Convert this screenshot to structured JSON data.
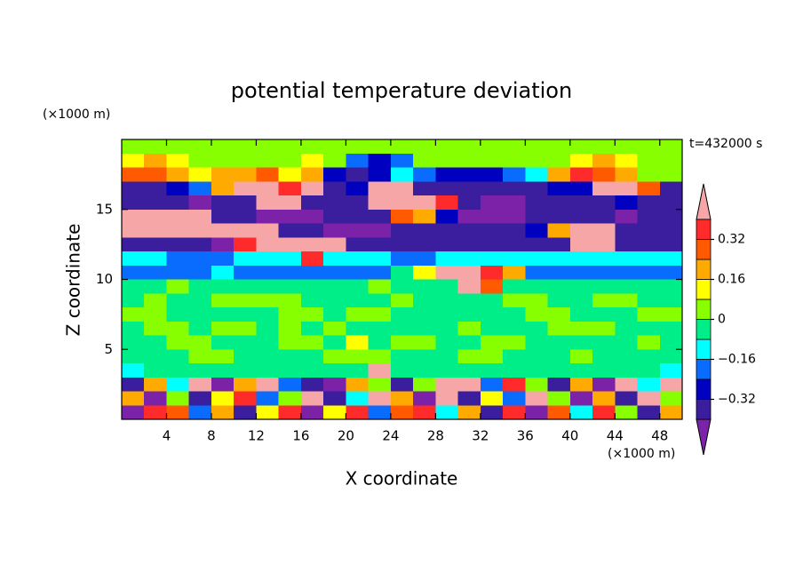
{
  "chart_data": {
    "type": "contourf",
    "title": "potential temperature deviation",
    "xlabel": "X coordinate",
    "ylabel": "Z coordinate",
    "xunit": "(×1000 m)",
    "yunit": "(×1000 m)",
    "annotation": "t=432000 s",
    "xlim": [
      0,
      50
    ],
    "ylim": [
      0,
      20
    ],
    "xticks": [
      4,
      8,
      12,
      16,
      20,
      24,
      28,
      32,
      36,
      40,
      44,
      48
    ],
    "yticks": [
      5,
      10,
      15
    ],
    "levels": [
      -0.4,
      -0.32,
      -0.24,
      -0.16,
      -0.08,
      0,
      0.08,
      0.16,
      0.24,
      0.32,
      0.4
    ],
    "colors": [
      "#7b22a8",
      "#3a1e9e",
      "#0000c0",
      "#0a6cff",
      "#00ffff",
      "#00ee88",
      "#88ff00",
      "#ffff00",
      "#ffaa00",
      "#ff5a00",
      "#ff2a2a",
      "#f6a6a6"
    ],
    "colorbar_ticks": [
      {
        "value": -0.32,
        "label": "−0.32"
      },
      {
        "value": -0.16,
        "label": "−0.16"
      },
      0,
      0.16,
      0.32
    ],
    "x": [
      1,
      3,
      5,
      7,
      9,
      11,
      13,
      15,
      17,
      19,
      21,
      23,
      25,
      27,
      29,
      31,
      33,
      35,
      37,
      39,
      41,
      43,
      45,
      47,
      49
    ],
    "y": [
      19.5,
      18.5,
      17.5,
      16.5,
      15.5,
      14.5,
      13.5,
      12.5,
      11.5,
      10.5,
      9.5,
      8.5,
      7.5,
      6.5,
      5.5,
      4.5,
      3.5,
      2.5,
      1.5,
      0.5
    ],
    "z": [
      [
        0.04,
        0.04,
        0.04,
        0.04,
        0.04,
        0.04,
        0.04,
        0.04,
        0.04,
        0.04,
        0.04,
        0.04,
        0.04,
        0.04,
        0.04,
        0.04,
        0.04,
        0.04,
        0.04,
        0.04,
        0.04,
        0.04,
        0.04,
        0.04,
        0.04
      ],
      [
        0.12,
        0.2,
        0.12,
        0.04,
        0.04,
        0.04,
        0.04,
        0.04,
        0.12,
        0.04,
        -0.2,
        -0.28,
        -0.2,
        0.04,
        0.04,
        0.04,
        0.04,
        0.04,
        0.04,
        0.04,
        0.12,
        0.2,
        0.12,
        0.04,
        0.04
      ],
      [
        0.28,
        0.28,
        0.2,
        0.12,
        0.2,
        0.2,
        0.28,
        0.12,
        0.2,
        -0.28,
        -0.36,
        -0.28,
        -0.12,
        -0.2,
        -0.28,
        -0.28,
        -0.28,
        -0.2,
        -0.12,
        0.2,
        0.36,
        0.28,
        0.2,
        0.04,
        0.04
      ],
      [
        -0.36,
        -0.36,
        -0.28,
        -0.2,
        0.2,
        0.44,
        0.44,
        0.36,
        0.44,
        -0.36,
        -0.28,
        0.44,
        0.44,
        -0.36,
        -0.36,
        -0.36,
        -0.36,
        -0.36,
        -0.36,
        -0.28,
        -0.28,
        0.44,
        0.44,
        0.28,
        -0.36
      ],
      [
        -0.36,
        -0.36,
        -0.36,
        -0.44,
        -0.36,
        -0.36,
        0.44,
        0.44,
        -0.36,
        -0.36,
        -0.36,
        0.44,
        0.44,
        0.44,
        0.36,
        -0.36,
        -0.44,
        -0.44,
        -0.36,
        -0.36,
        -0.36,
        -0.36,
        -0.28,
        -0.36,
        -0.36
      ],
      [
        0.44,
        0.44,
        0.44,
        0.44,
        -0.36,
        -0.36,
        -0.44,
        -0.44,
        -0.44,
        -0.36,
        -0.36,
        -0.36,
        0.28,
        0.2,
        -0.28,
        -0.44,
        -0.44,
        -0.44,
        -0.36,
        -0.36,
        -0.36,
        -0.36,
        -0.44,
        -0.36,
        -0.36
      ],
      [
        0.44,
        0.44,
        0.44,
        0.44,
        0.44,
        0.44,
        0.44,
        -0.36,
        -0.36,
        -0.44,
        -0.44,
        -0.44,
        -0.36,
        -0.36,
        -0.36,
        -0.36,
        -0.36,
        -0.36,
        -0.28,
        0.2,
        0.44,
        0.44,
        -0.36,
        -0.36,
        -0.36
      ],
      [
        -0.36,
        -0.36,
        -0.36,
        -0.36,
        -0.44,
        0.36,
        0.44,
        0.44,
        0.44,
        0.44,
        -0.36,
        -0.36,
        -0.36,
        -0.36,
        -0.36,
        -0.36,
        -0.36,
        -0.36,
        -0.36,
        -0.36,
        0.44,
        0.44,
        -0.36,
        -0.36,
        -0.36
      ],
      [
        -0.12,
        -0.12,
        -0.2,
        -0.2,
        -0.2,
        -0.12,
        -0.12,
        -0.12,
        0.36,
        -0.12,
        -0.12,
        -0.12,
        -0.2,
        -0.2,
        -0.12,
        -0.12,
        -0.12,
        -0.12,
        -0.12,
        -0.12,
        -0.12,
        -0.12,
        -0.12,
        -0.12,
        -0.12
      ],
      [
        -0.2,
        -0.2,
        -0.2,
        -0.2,
        -0.12,
        -0.2,
        -0.2,
        -0.2,
        -0.2,
        -0.2,
        -0.2,
        -0.2,
        -0.04,
        0.12,
        0.44,
        0.44,
        0.36,
        0.2,
        -0.2,
        -0.2,
        -0.2,
        -0.2,
        -0.2,
        -0.2,
        -0.2
      ],
      [
        -0.04,
        -0.04,
        0.04,
        -0.04,
        -0.04,
        -0.04,
        -0.04,
        -0.04,
        -0.04,
        -0.04,
        -0.04,
        0.04,
        -0.04,
        -0.04,
        -0.04,
        0.44,
        0.28,
        -0.04,
        -0.04,
        -0.04,
        -0.04,
        -0.04,
        -0.04,
        -0.04,
        -0.04
      ],
      [
        -0.04,
        0.04,
        -0.04,
        -0.04,
        0.04,
        0.04,
        0.04,
        0.04,
        -0.04,
        -0.04,
        -0.04,
        -0.04,
        0.04,
        -0.04,
        -0.04,
        -0.04,
        -0.04,
        0.04,
        0.04,
        -0.04,
        -0.04,
        0.04,
        0.04,
        -0.04,
        -0.04
      ],
      [
        0.04,
        0.04,
        -0.04,
        -0.04,
        -0.04,
        -0.04,
        -0.04,
        0.04,
        0.04,
        -0.04,
        0.04,
        0.04,
        -0.04,
        -0.04,
        -0.04,
        -0.04,
        -0.04,
        -0.04,
        0.04,
        0.04,
        -0.04,
        -0.04,
        -0.04,
        0.04,
        0.04
      ],
      [
        -0.04,
        0.04,
        0.04,
        -0.04,
        0.04,
        0.04,
        -0.04,
        0.04,
        -0.04,
        0.04,
        -0.04,
        -0.04,
        -0.04,
        -0.04,
        -0.04,
        0.04,
        -0.04,
        -0.04,
        -0.04,
        0.04,
        0.04,
        0.04,
        -0.04,
        -0.04,
        -0.04
      ],
      [
        -0.04,
        -0.04,
        0.04,
        0.04,
        -0.04,
        -0.04,
        -0.04,
        0.04,
        0.04,
        -0.04,
        0.12,
        -0.04,
        0.04,
        0.04,
        -0.04,
        -0.04,
        0.04,
        0.04,
        -0.04,
        -0.04,
        -0.04,
        -0.04,
        -0.04,
        0.04,
        -0.04
      ],
      [
        -0.04,
        -0.04,
        -0.04,
        0.04,
        0.04,
        -0.04,
        -0.04,
        -0.04,
        -0.04,
        0.04,
        0.04,
        0.04,
        -0.04,
        -0.04,
        -0.04,
        0.04,
        0.04,
        -0.04,
        -0.04,
        -0.04,
        0.04,
        -0.04,
        -0.04,
        -0.04,
        -0.04
      ],
      [
        -0.12,
        -0.04,
        -0.04,
        -0.04,
        -0.04,
        -0.04,
        -0.04,
        -0.04,
        -0.04,
        -0.04,
        -0.04,
        0.44,
        -0.04,
        -0.04,
        -0.04,
        -0.04,
        -0.04,
        -0.04,
        -0.04,
        -0.04,
        -0.04,
        -0.04,
        -0.04,
        -0.04,
        -0.12
      ],
      [
        -0.36,
        0.2,
        -0.12,
        0.44,
        -0.44,
        0.2,
        0.44,
        -0.2,
        -0.36,
        -0.44,
        0.2,
        0.04,
        -0.36,
        0.04,
        0.44,
        0.44,
        -0.2,
        0.36,
        0.04,
        -0.36,
        0.2,
        -0.44,
        0.44,
        -0.12,
        0.44
      ],
      [
        0.2,
        -0.44,
        0.04,
        -0.36,
        0.12,
        0.36,
        -0.2,
        0.04,
        0.44,
        -0.36,
        -0.12,
        0.44,
        0.2,
        -0.44,
        0.44,
        -0.36,
        0.12,
        -0.2,
        0.44,
        0.04,
        -0.44,
        0.2,
        -0.36,
        0.44,
        0.04
      ],
      [
        -0.44,
        0.36,
        0.28,
        -0.2,
        0.2,
        -0.36,
        0.12,
        0.36,
        -0.44,
        0.12,
        0.36,
        -0.2,
        0.28,
        0.36,
        -0.12,
        0.2,
        -0.36,
        0.36,
        -0.44,
        0.28,
        -0.12,
        0.36,
        0.04,
        -0.36,
        0.2
      ]
    ]
  }
}
